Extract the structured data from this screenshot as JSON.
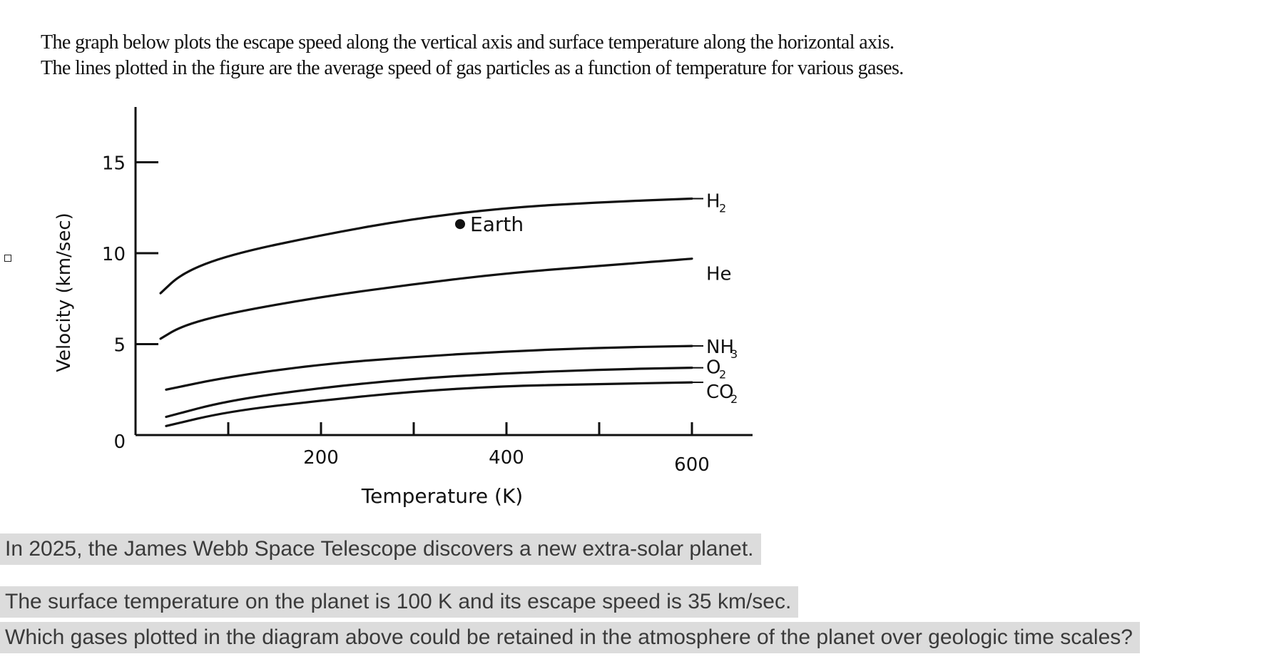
{
  "intro": {
    "line1": "The graph below plots the escape speed along the vertical axis and surface temperature along the horizontal axis.",
    "line2": "The lines plotted in the figure are the average speed of gas particles as a function of temperature for various gases."
  },
  "chart_data": {
    "type": "line",
    "title": "",
    "xlabel": "Temperature (K)",
    "ylabel": "Velocity (km/sec)",
    "xlim": [
      0,
      660
    ],
    "ylim": [
      0,
      17.5
    ],
    "x_ticks": [
      100,
      200,
      300,
      400,
      500,
      600
    ],
    "x_tick_labels": [
      {
        "value": 200,
        "label": "200"
      },
      {
        "value": 400,
        "label": "400"
      },
      {
        "value": 600,
        "label": "600"
      }
    ],
    "y_ticks": [
      {
        "value": 0,
        "label": "0"
      },
      {
        "value": 5,
        "label": "5"
      },
      {
        "value": 10,
        "label": "10"
      },
      {
        "value": 15,
        "label": "15"
      }
    ],
    "grid": false,
    "series": [
      {
        "name": "H₂",
        "label_base": "H",
        "label_sub": "2",
        "x": [
          27,
          50,
          100,
          200,
          300,
          400,
          500,
          600
        ],
        "y": [
          7.8,
          8.9,
          9.9,
          11.0,
          11.9,
          12.5,
          12.8,
          13.0
        ]
      },
      {
        "name": "He",
        "label_base": "He",
        "label_sub": "",
        "x": [
          27,
          50,
          100,
          200,
          300,
          400,
          500,
          600
        ],
        "y": [
          5.3,
          6.0,
          6.7,
          7.6,
          8.3,
          8.9,
          9.3,
          9.7
        ]
      },
      {
        "name": "NH₃",
        "label_base": "NH",
        "label_sub": "3",
        "x": [
          33,
          100,
          200,
          300,
          400,
          500,
          600
        ],
        "y": [
          2.5,
          3.2,
          3.9,
          4.3,
          4.6,
          4.8,
          4.9
        ]
      },
      {
        "name": "O₂",
        "label_base": "O",
        "label_sub": "2",
        "x": [
          33,
          100,
          200,
          300,
          400,
          500,
          600
        ],
        "y": [
          1.0,
          1.9,
          2.6,
          3.1,
          3.4,
          3.6,
          3.7
        ]
      },
      {
        "name": "CO₂",
        "label_base": "CO",
        "label_sub": "2",
        "x": [
          33,
          100,
          200,
          300,
          400,
          500,
          600
        ],
        "y": [
          0.5,
          1.3,
          1.9,
          2.4,
          2.7,
          2.8,
          2.9
        ]
      }
    ],
    "annotations": [
      {
        "label": "Earth",
        "x": 350,
        "y": 11.6
      }
    ]
  },
  "question": {
    "line1": "In 2025, the James Webb Space Telescope discovers a new extra-solar planet.",
    "line2": "The surface temperature on the planet is 100 K and its escape speed is 35 km/sec.",
    "line3": "Which gases plotted in the diagram above could be retained in the atmosphere of the planet over geologic time scales?"
  }
}
